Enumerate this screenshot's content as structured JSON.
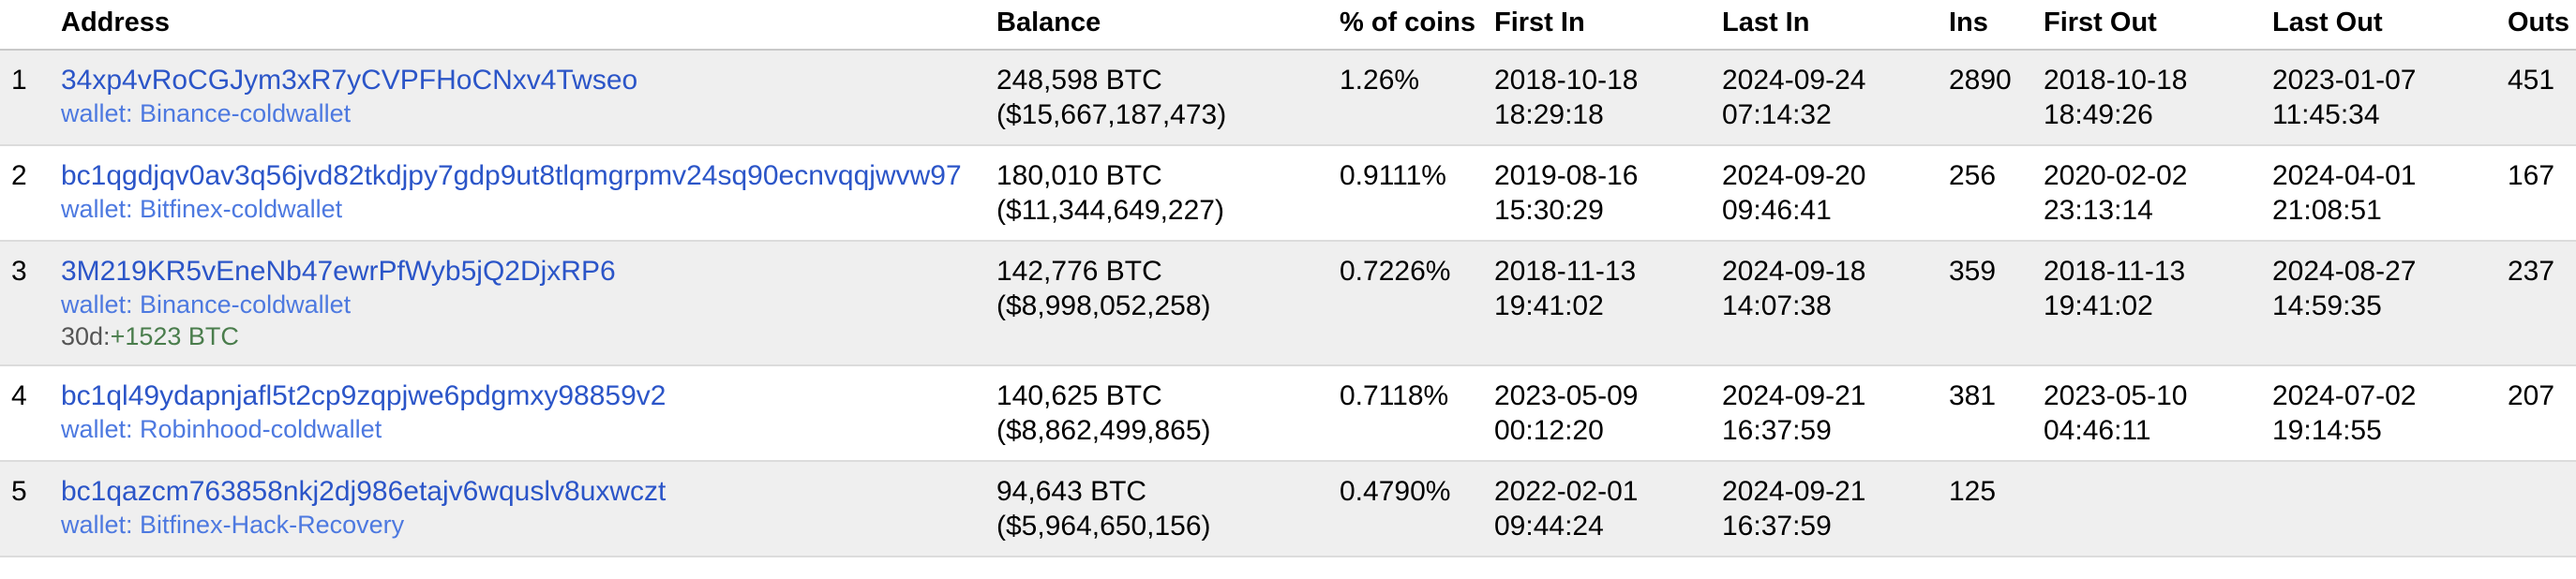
{
  "colors": {
    "address_link": "#2b55c8",
    "wallet_link": "#4d79e0",
    "delta_positive_green": "#4a7d4c",
    "muted_label_gray": "#555555",
    "row_alt_background": "#efefef",
    "header_border": "#c9c9c9",
    "row_border": "#dcdcdc"
  },
  "table": {
    "headers": [
      "",
      "Address",
      "Balance",
      "% of coins",
      "First In",
      "Last In",
      "Ins",
      "First Out",
      "Last Out",
      "Outs"
    ],
    "rows": [
      {
        "rank": "1",
        "address": "34xp4vRoCGJym3xR7yCVPFHoCNxv4Twseo",
        "wallet": "wallet: Binance-coldwallet",
        "balance_btc": "248,598 BTC",
        "balance_usd": "($15,667,187,473)",
        "pct_of_coins": "1.26%",
        "first_in": [
          "2018-10-18",
          "18:29:18"
        ],
        "last_in": [
          "2024-09-24",
          "07:14:32"
        ],
        "ins": "2890",
        "first_out": [
          "2018-10-18",
          "18:49:26"
        ],
        "last_out": [
          "2023-01-07",
          "11:45:34"
        ],
        "outs": "451"
      },
      {
        "rank": "2",
        "address": "bc1qgdjqv0av3q56jvd82tkdjpy7gdp9ut8tlqmgrpmv24sq90ecnvqqjwvw97",
        "wallet": "wallet: Bitfinex-coldwallet",
        "balance_btc": "180,010 BTC",
        "balance_usd": "($11,344,649,227)",
        "pct_of_coins": "0.9111%",
        "first_in": [
          "2019-08-16",
          "15:30:29"
        ],
        "last_in": [
          "2024-09-20",
          "09:46:41"
        ],
        "ins": "256",
        "first_out": [
          "2020-02-02",
          "23:13:14"
        ],
        "last_out": [
          "2024-04-01",
          "21:08:51"
        ],
        "outs": "167"
      },
      {
        "rank": "3",
        "address": "3M219KR5vEneNb47ewrPfWyb5jQ2DjxRP6",
        "wallet": "wallet: Binance-coldwallet",
        "note_30d_label": "30d:",
        "note_30d_value": "+1523 BTC",
        "balance_btc": "142,776 BTC",
        "balance_usd": "($8,998,052,258)",
        "pct_of_coins": "0.7226%",
        "first_in": [
          "2018-11-13",
          "19:41:02"
        ],
        "last_in": [
          "2024-09-18",
          "14:07:38"
        ],
        "ins": "359",
        "first_out": [
          "2018-11-13",
          "19:41:02"
        ],
        "last_out": [
          "2024-08-27",
          "14:59:35"
        ],
        "outs": "237"
      },
      {
        "rank": "4",
        "address": "bc1ql49ydapnjafl5t2cp9zqpjwe6pdgmxy98859v2",
        "wallet": "wallet: Robinhood-coldwallet",
        "balance_btc": "140,625 BTC",
        "balance_usd": "($8,862,499,865)",
        "pct_of_coins": "0.7118%",
        "first_in": [
          "2023-05-09",
          "00:12:20"
        ],
        "last_in": [
          "2024-09-21",
          "16:37:59"
        ],
        "ins": "381",
        "first_out": [
          "2023-05-10",
          "04:46:11"
        ],
        "last_out": [
          "2024-07-02",
          "19:14:55"
        ],
        "outs": "207"
      },
      {
        "rank": "5",
        "address": "bc1qazcm763858nkj2dj986etajv6wquslv8uxwczt",
        "wallet": "wallet: Bitfinex-Hack-Recovery",
        "balance_btc": "94,643 BTC",
        "balance_usd": "($5,964,650,156)",
        "pct_of_coins": "0.4790%",
        "first_in": [
          "2022-02-01",
          "09:44:24"
        ],
        "last_in": [
          "2024-09-21",
          "16:37:59"
        ],
        "ins": "125",
        "first_out": null,
        "last_out": null,
        "outs": ""
      }
    ]
  }
}
